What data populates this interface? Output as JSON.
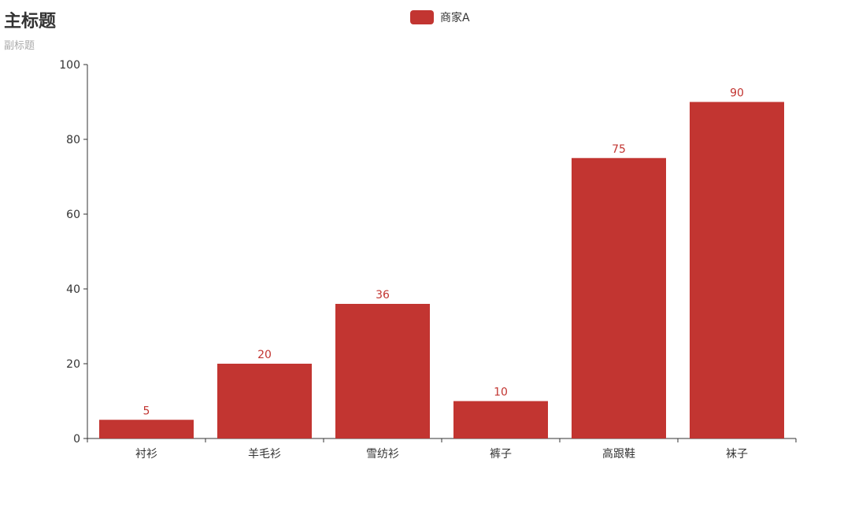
{
  "colors": {
    "series": "#c23531",
    "axis": "#333333",
    "subtitle": "#aaaaaa"
  },
  "chart_data": {
    "type": "bar",
    "title": "主标题",
    "subtitle": "副标题",
    "legend": "top-center",
    "categories": [
      "衬衫",
      "羊毛衫",
      "雪纺衫",
      "裤子",
      "高跟鞋",
      "袜子"
    ],
    "series": [
      {
        "name": "商家A",
        "values": [
          5,
          20,
          36,
          10,
          75,
          90
        ]
      }
    ],
    "ylim": [
      0,
      100
    ],
    "yticks": [
      0,
      20,
      40,
      60,
      80,
      100
    ],
    "grid": false,
    "show_data_labels": true
  }
}
